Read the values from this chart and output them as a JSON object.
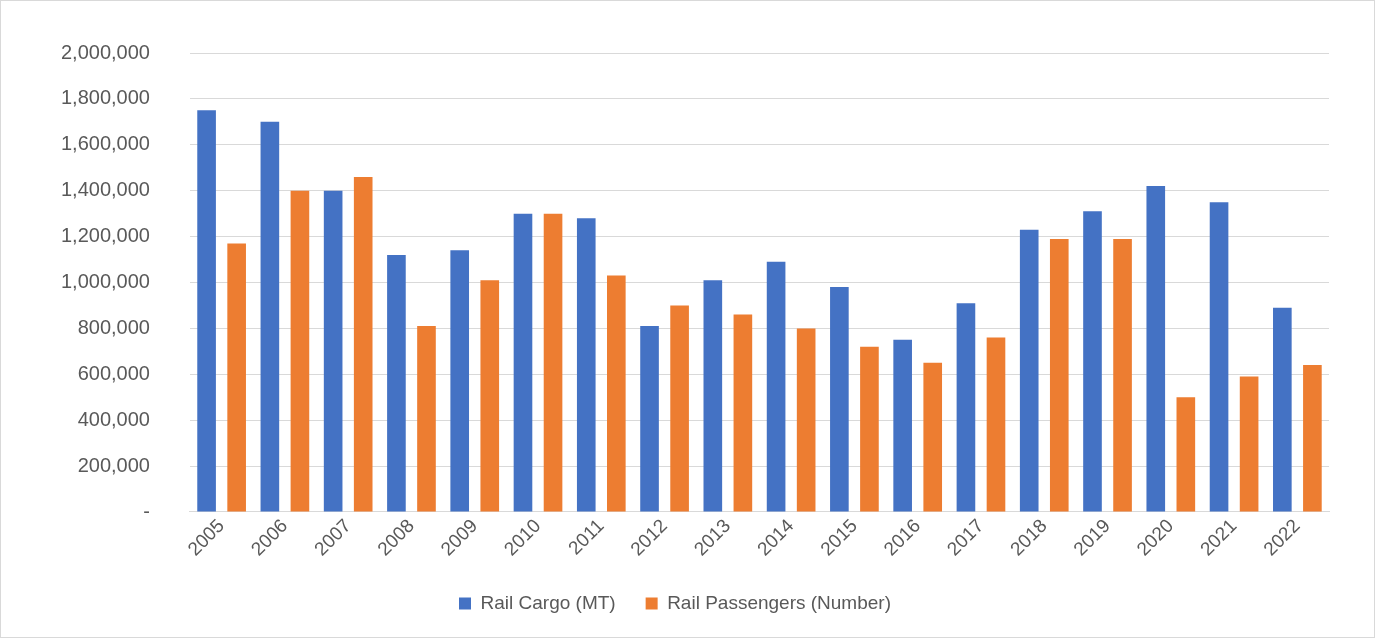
{
  "chart_data": {
    "type": "bar",
    "categories": [
      "2005",
      "2006",
      "2007",
      "2008",
      "2009",
      "2010",
      "2011",
      "2012",
      "2013",
      "2014",
      "2015",
      "2016",
      "2017",
      "2018",
      "2019",
      "2020",
      "2021",
      "2022"
    ],
    "series": [
      {
        "name": "Rail Cargo (MT)",
        "color": "#4472c4",
        "values": [
          1750000,
          1700000,
          1400000,
          1120000,
          1140000,
          1300000,
          1280000,
          810000,
          1010000,
          1090000,
          980000,
          750000,
          910000,
          1230000,
          1310000,
          1420000,
          1350000,
          890000
        ]
      },
      {
        "name": "Rail Passengers (Number)",
        "color": "#ed7d31",
        "values": [
          1170000,
          1400000,
          1460000,
          810000,
          1010000,
          1300000,
          1030000,
          900000,
          860000,
          800000,
          720000,
          650000,
          760000,
          1190000,
          1190000,
          500000,
          590000,
          640000
        ]
      }
    ],
    "ylim": [
      0,
      2000000
    ],
    "yticks": [
      {
        "value": 0,
        "label": "-"
      },
      {
        "value": 200000,
        "label": "200,000"
      },
      {
        "value": 400000,
        "label": "400,000"
      },
      {
        "value": 600000,
        "label": "600,000"
      },
      {
        "value": 800000,
        "label": "800,000"
      },
      {
        "value": 1000000,
        "label": "1,000,000"
      },
      {
        "value": 1200000,
        "label": "1,200,000"
      },
      {
        "value": 1400000,
        "label": "1,400,000"
      },
      {
        "value": 1600000,
        "label": "1,600,000"
      },
      {
        "value": 1800000,
        "label": "1,800,000"
      },
      {
        "value": 2000000,
        "label": "2,000,000"
      }
    ],
    "grid": "y",
    "legend": "bottom"
  }
}
